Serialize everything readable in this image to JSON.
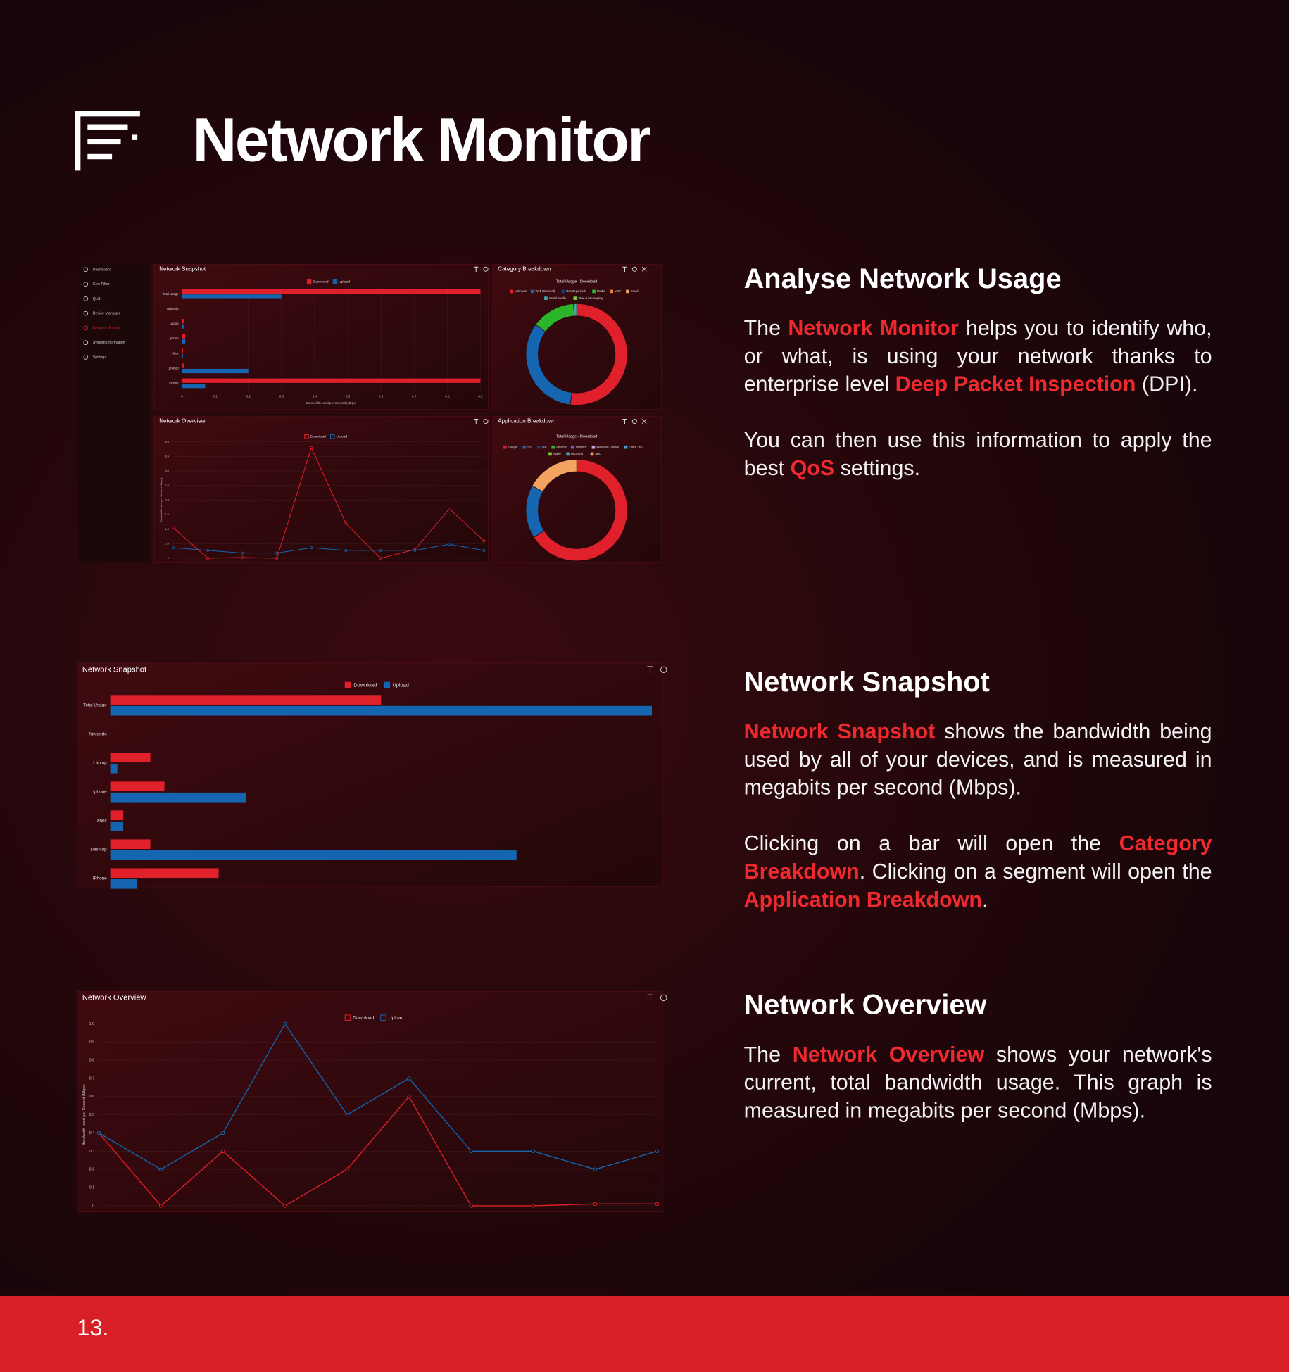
{
  "header": {
    "title": "Network Monitor"
  },
  "dashboard": {
    "sidebar": [
      "Dashboard",
      "Geo-Filter",
      "QoS",
      "Device Manager",
      "Network Monitor",
      "System Information",
      "Settings"
    ],
    "active": 4
  },
  "chart_data": [
    {
      "type": "bar",
      "orientation": "horizontal",
      "title": "Network Snapshot",
      "categories": [
        "Total Usage",
        "Nintendo",
        "Laptop",
        "Iphone",
        "Xbox",
        "Desktop",
        "iPhone"
      ],
      "series": [
        {
          "name": "Download",
          "color": "#e0202a",
          "values": [
            0.9,
            0,
            0.005,
            0.01,
            0.003,
            0.005,
            0.9
          ]
        },
        {
          "name": "Upload",
          "color": "#1565b0",
          "values": [
            0.3,
            0,
            0.005,
            0.01,
            0.003,
            0.2,
            0.07
          ]
        }
      ],
      "xlim": [
        0,
        0.9
      ],
      "xticks": [
        0,
        0.1,
        0.2,
        0.3,
        0.4,
        0.5,
        0.6,
        0.7,
        0.8,
        0.9
      ],
      "xlabel": "Bandwidth used per Second (Mbps)"
    },
    {
      "type": "pie",
      "donut": true,
      "title": "Category Breakdown",
      "subtitle": "Total Usage - Download",
      "categories": [
        "Unknown",
        "Web (General)",
        "Uncategorised",
        "Media",
        "VoIP",
        "Email",
        "Social Media",
        "Chat & Messaging"
      ],
      "colors": [
        "#e0202a",
        "#1565b0",
        "#0d3f7a",
        "#2bb52b",
        "#f07a30",
        "#f4a460",
        "#48a6a6",
        "#7ccf3a"
      ],
      "values": [
        52,
        33,
        0,
        14,
        0,
        0,
        1,
        0
      ]
    },
    {
      "type": "line",
      "title": "Network Overview",
      "categories": [
        null,
        null,
        null,
        null,
        null,
        null,
        null,
        null,
        null,
        null
      ],
      "series": [
        {
          "name": "Download",
          "color": "#e0202a",
          "values": [
            1.05,
            0,
            0.03,
            0,
            3.8,
            1.2,
            0,
            0.3,
            1.7,
            0.6
          ]
        },
        {
          "name": "Upload",
          "color": "#1565b0",
          "values": [
            0.36,
            0.27,
            0.18,
            0.18,
            0.36,
            0.27,
            0.27,
            0.27,
            0.48,
            0.27
          ]
        }
      ],
      "ylim": [
        0,
        4
      ],
      "yticks": [
        0,
        0.5,
        {
          "value": 1,
          "label": "1.0"
        },
        1.5,
        {
          "value": 2,
          "label": "2.0"
        },
        2.5,
        {
          "value": 3,
          "label": "3.0"
        },
        3.5,
        {
          "value": 4,
          "label": "4.0"
        }
      ],
      "ylabel": "Bandwidth used per Second (Mbps)"
    },
    {
      "type": "pie",
      "donut": true,
      "title": "Application Breakdown",
      "subtitle": "Total Usage - Download",
      "categories": [
        "Google",
        "SSL",
        "SIP",
        "Amazon",
        "Dropbox",
        "Windows Update",
        "Office 365",
        "Apple",
        "Microsoft",
        "BBC"
      ],
      "colors": [
        "#e0202a",
        "#1565b0",
        "#0d3f7a",
        "#2bb52b",
        "#7a5ad0",
        "#c9a0d8",
        "#3fa0d0",
        "#7ccf3a",
        "#48a6a6",
        "#f4a460"
      ],
      "values": [
        66,
        17,
        0,
        0,
        0,
        0,
        0,
        0,
        0,
        17
      ]
    },
    {
      "type": "bar",
      "orientation": "horizontal",
      "title": "Network Snapshot",
      "categories": [
        "Total Usage",
        "Nintendo",
        "Laptop",
        "Iphone",
        "Xbox",
        "Desktop",
        "iPhone"
      ],
      "series": [
        {
          "name": "Download",
          "color": "#e0202a",
          "values": [
            0.5,
            0,
            0.074,
            0.1,
            0.024,
            0.074,
            0.2
          ]
        },
        {
          "name": "Upload",
          "color": "#1565b0",
          "values": [
            1.0,
            0,
            0.013,
            0.25,
            0.024,
            0.75,
            0.05
          ]
        }
      ],
      "xlim": [
        0,
        1
      ]
    },
    {
      "type": "line",
      "title": "Network Overview",
      "categories": [
        null,
        null,
        null,
        null,
        null,
        null,
        null,
        null,
        null,
        null
      ],
      "series": [
        {
          "name": "Download",
          "color": "#e0202a",
          "values": [
            0.4,
            0,
            0.3,
            0,
            0.2,
            0.6,
            0,
            0,
            0.01,
            0.01
          ]
        },
        {
          "name": "Upload",
          "color": "#1565b0",
          "values": [
            0.4,
            0.2,
            0.4,
            1.0,
            0.5,
            0.7,
            0.3,
            0.3,
            0.2,
            0.3
          ]
        }
      ],
      "ylim": [
        0,
        1
      ],
      "yticks": [
        0,
        0.1,
        0.2,
        0.3,
        0.4,
        0.5,
        0.6,
        0.7,
        0.8,
        0.9,
        {
          "value": 1,
          "label": "1.0"
        }
      ],
      "ylabel": "Bandwidth used per Second (Mbps)"
    }
  ],
  "sections": [
    {
      "heading": "Analyse Network Usage",
      "paragraphs": [
        [
          {
            "text": "The "
          },
          {
            "text": "Network Monitor",
            "highlight": true
          },
          {
            "text": " helps you to identify who, or what, is using your network thanks to enterprise level "
          },
          {
            "text": "Deep Packet Inspection",
            "highlight": true
          },
          {
            "text": " (DPI)."
          }
        ],
        [
          {
            "text": "You can then use this information to apply the best "
          },
          {
            "text": "QoS",
            "highlight": true
          },
          {
            "text": " settings."
          }
        ]
      ]
    },
    {
      "heading": "Network Snapshot",
      "paragraphs": [
        [
          {
            "text": "Network Snapshot",
            "highlight": true
          },
          {
            "text": " shows the bandwidth being used by all of your devices, and is measured in megabits per second (Mbps)."
          }
        ],
        [
          {
            "text": "Clicking on a bar will open the "
          },
          {
            "text": "Category Breakdown",
            "highlight": true
          },
          {
            "text": ". Clicking on a segment will open the "
          },
          {
            "text": "Application Breakdown",
            "highlight": true
          },
          {
            "text": "."
          }
        ]
      ]
    },
    {
      "heading": "Network Overview",
      "paragraphs": [
        [
          {
            "text": "The "
          },
          {
            "text": "Network Overview",
            "highlight": true
          },
          {
            "text": " shows your network's current, total bandwidth usage. This graph is measured in megabits per second (Mbps)."
          }
        ]
      ]
    }
  ],
  "footer": {
    "page": "13."
  }
}
